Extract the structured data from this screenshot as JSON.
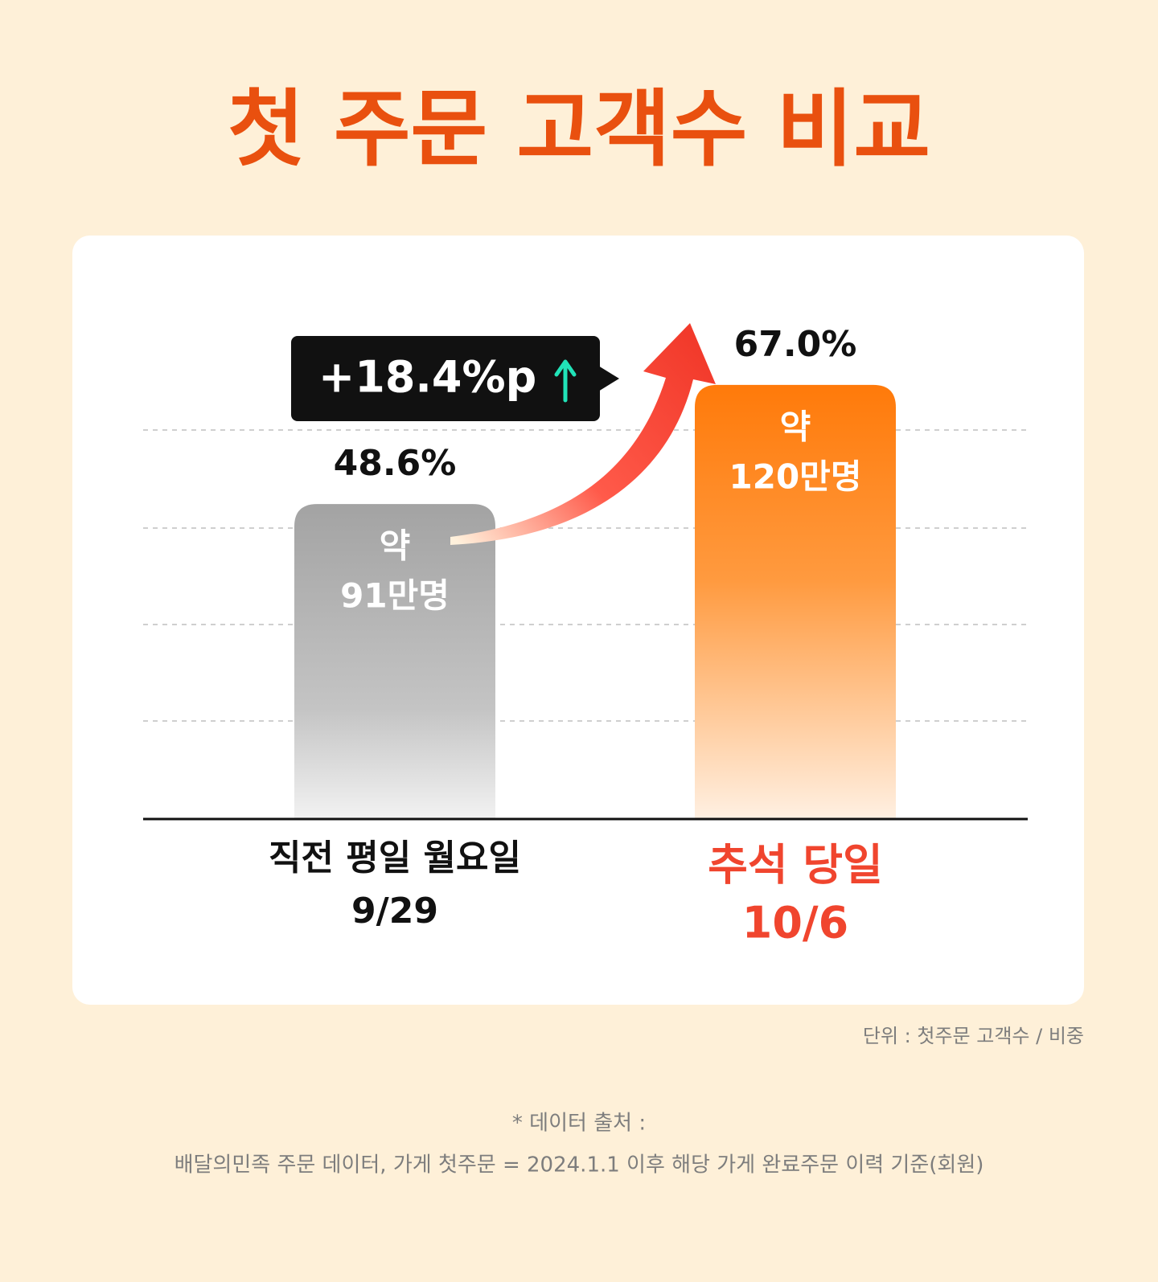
{
  "chart_data": {
    "type": "bar",
    "title": "첫 주문 고객수 비교",
    "categories": [
      "직전 평일 월요일",
      "추석 당일"
    ],
    "dates": [
      "9/29",
      "10/6"
    ],
    "values": [
      48.6,
      67.0
    ],
    "value_labels": [
      "48.6%",
      "67.0%"
    ],
    "bar_labels": [
      [
        "약",
        "91만명"
      ],
      [
        "약",
        "120만명"
      ]
    ],
    "colors": [
      "#a3a3a3",
      "#ff7a0a"
    ],
    "label_colors": [
      "#111111",
      "#f0452e"
    ],
    "ylim": [
      0,
      80
    ],
    "annotation": "+18.4%p",
    "unit_note": "단위 : 첫주문 고객수 / 비중",
    "source_lines": [
      "* 데이터 출처 :",
      "배달의민족 주문 데이터, 가게 첫주문 = 2024.1.1 이후 해당 가게 완료주문 이력 기준(회원)"
    ]
  }
}
